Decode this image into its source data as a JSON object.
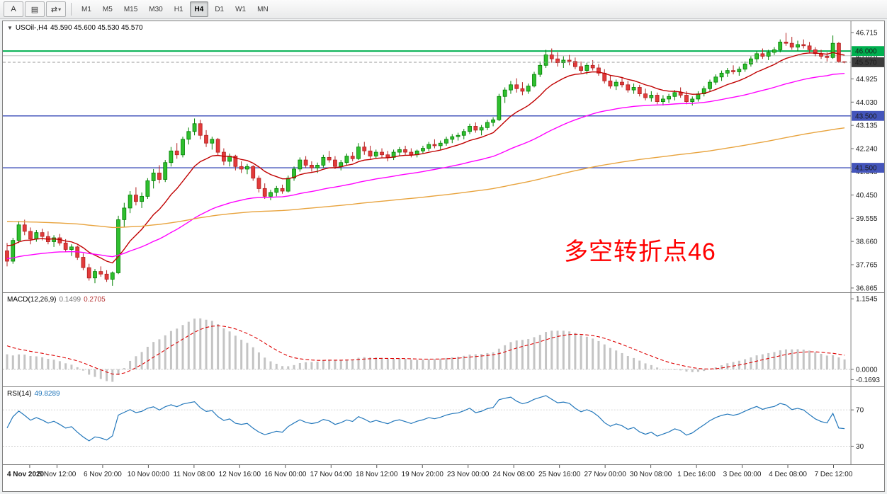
{
  "toolbar": {
    "tools": [
      {
        "name": "arrow-tool",
        "glyph": "A"
      },
      {
        "name": "chart-tool",
        "glyph": "▤"
      },
      {
        "name": "cycle-tool",
        "glyph": "⇄",
        "dropdown_glyph": "▾"
      }
    ],
    "timeframes": [
      {
        "label": "M1"
      },
      {
        "label": "M5"
      },
      {
        "label": "M15"
      },
      {
        "label": "M30"
      },
      {
        "label": "H1"
      },
      {
        "label": "H4",
        "active": true
      },
      {
        "label": "D1"
      },
      {
        "label": "W1"
      },
      {
        "label": "MN"
      }
    ]
  },
  "price_panel": {
    "collapse_glyph": "▼",
    "title": "USOil-,H4",
    "ohlc_text": "45.590 45.600 45.530 45.570",
    "annotation": "多空转折点46"
  },
  "macd_panel": {
    "name": "MACD(12,26,9)",
    "main_value": "0.1499",
    "signal_value": "0.2705"
  },
  "rsi_panel": {
    "name": "RSI(14)",
    "value": "49.8289"
  },
  "chart_data": {
    "type": "candlestick",
    "symbol": "USOil-",
    "timeframe": "H4",
    "current_bar": {
      "open": 45.59,
      "high": 45.6,
      "low": 45.53,
      "close": 45.57
    },
    "colors": {
      "bull": "#008000",
      "bull_fill": "#2FBF2F",
      "bear": "#B22020",
      "bear_fill": "#E23B3B",
      "background": "#FFFFFF"
    },
    "price_axis": {
      "min": 36.7,
      "max": 47.15,
      "ticks": [
        "46.715",
        "45.820",
        "44.925",
        "44.030",
        "43.135",
        "42.240",
        "41.345",
        "40.450",
        "39.555",
        "38.660",
        "37.765",
        "36.865"
      ]
    },
    "levels": [
      {
        "price": 46.0,
        "label": "46.000",
        "color": "#00B050",
        "width": 2
      },
      {
        "price": 45.82,
        "label": "",
        "color": "#C0C0C0",
        "width": 1
      },
      {
        "price": 43.5,
        "label": "43.500",
        "color": "#4455BB",
        "width": 1.4
      },
      {
        "price": 41.5,
        "label": "41.500",
        "color": "#4455BB",
        "width": 1.4
      }
    ],
    "bid": {
      "price": 45.57,
      "label": "45.570",
      "line_color": "#999999",
      "label_bg": "#3C3C3C"
    },
    "moving_averages": [
      {
        "name": "ma-fast",
        "color": "#C00000",
        "alpha": 0.15,
        "seed": 38.6
      },
      {
        "name": "ma-mid",
        "color": "#FF00FF",
        "alpha": 0.04,
        "seed": 38.0
      },
      {
        "name": "ma-slow",
        "color": "#E8A33D",
        "alpha": 0.012,
        "seed": 39.45
      }
    ],
    "candles": [
      [
        38.3,
        38.6,
        37.7,
        37.9
      ],
      [
        37.9,
        38.8,
        37.8,
        38.7
      ],
      [
        38.7,
        39.45,
        38.6,
        39.3
      ],
      [
        39.3,
        39.5,
        38.9,
        39.05
      ],
      [
        39.05,
        39.2,
        38.55,
        38.75
      ],
      [
        38.75,
        39.1,
        38.65,
        39.0
      ],
      [
        39.0,
        39.15,
        38.7,
        38.85
      ],
      [
        38.85,
        39.05,
        38.55,
        38.65
      ],
      [
        38.65,
        38.9,
        38.45,
        38.8
      ],
      [
        38.8,
        38.95,
        38.5,
        38.6
      ],
      [
        38.6,
        38.75,
        38.25,
        38.35
      ],
      [
        38.35,
        38.55,
        38.1,
        38.45
      ],
      [
        38.45,
        38.5,
        37.95,
        38.05
      ],
      [
        38.05,
        38.2,
        37.55,
        37.65
      ],
      [
        37.65,
        37.8,
        37.15,
        37.25
      ],
      [
        37.25,
        37.6,
        37.05,
        37.5
      ],
      [
        37.5,
        37.7,
        37.3,
        37.4
      ],
      [
        37.4,
        37.55,
        37.1,
        37.2
      ],
      [
        37.2,
        37.5,
        36.95,
        37.45
      ],
      [
        37.45,
        39.65,
        37.4,
        39.5
      ],
      [
        39.5,
        40.15,
        39.2,
        39.95
      ],
      [
        39.95,
        40.6,
        39.75,
        40.45
      ],
      [
        40.45,
        40.75,
        40.05,
        40.2
      ],
      [
        40.2,
        40.55,
        39.95,
        40.4
      ],
      [
        40.4,
        41.1,
        40.3,
        41.0
      ],
      [
        41.0,
        41.45,
        40.7,
        41.3
      ],
      [
        41.3,
        41.6,
        40.9,
        41.05
      ],
      [
        41.05,
        41.8,
        40.95,
        41.7
      ],
      [
        41.7,
        42.3,
        41.55,
        42.15
      ],
      [
        42.15,
        42.45,
        41.85,
        42.0
      ],
      [
        42.0,
        42.7,
        41.9,
        42.6
      ],
      [
        42.6,
        43.05,
        42.4,
        42.9
      ],
      [
        42.9,
        43.4,
        42.75,
        43.2
      ],
      [
        43.2,
        43.35,
        42.6,
        42.75
      ],
      [
        42.75,
        42.95,
        42.3,
        42.45
      ],
      [
        42.45,
        42.7,
        42.2,
        42.6
      ],
      [
        42.6,
        42.65,
        42.0,
        42.1
      ],
      [
        42.1,
        42.25,
        41.6,
        41.75
      ],
      [
        41.75,
        42.05,
        41.55,
        41.95
      ],
      [
        41.95,
        42.0,
        41.4,
        41.55
      ],
      [
        41.55,
        41.75,
        41.3,
        41.45
      ],
      [
        41.45,
        41.65,
        41.25,
        41.55
      ],
      [
        41.55,
        41.6,
        41.0,
        41.1
      ],
      [
        41.1,
        41.2,
        40.55,
        40.7
      ],
      [
        40.7,
        40.9,
        40.3,
        40.4
      ],
      [
        40.4,
        40.65,
        40.25,
        40.55
      ],
      [
        40.55,
        40.8,
        40.4,
        40.7
      ],
      [
        40.7,
        40.85,
        40.5,
        40.6
      ],
      [
        40.6,
        41.2,
        40.55,
        41.1
      ],
      [
        41.1,
        41.55,
        41.0,
        41.45
      ],
      [
        41.45,
        41.9,
        41.35,
        41.8
      ],
      [
        41.8,
        41.95,
        41.5,
        41.6
      ],
      [
        41.6,
        41.75,
        41.35,
        41.5
      ],
      [
        41.5,
        41.7,
        41.3,
        41.6
      ],
      [
        41.6,
        42.0,
        41.5,
        41.9
      ],
      [
        41.9,
        42.15,
        41.7,
        41.8
      ],
      [
        41.8,
        41.95,
        41.45,
        41.55
      ],
      [
        41.55,
        41.8,
        41.4,
        41.7
      ],
      [
        41.7,
        42.05,
        41.6,
        41.95
      ],
      [
        41.95,
        42.1,
        41.75,
        41.85
      ],
      [
        41.85,
        42.45,
        41.8,
        42.3
      ],
      [
        42.3,
        42.5,
        42.0,
        42.15
      ],
      [
        42.15,
        42.35,
        41.85,
        41.95
      ],
      [
        41.95,
        42.2,
        41.85,
        42.1
      ],
      [
        42.1,
        42.25,
        41.9,
        42.0
      ],
      [
        42.0,
        42.15,
        41.75,
        41.9
      ],
      [
        41.9,
        42.2,
        41.8,
        42.1
      ],
      [
        42.1,
        42.3,
        41.95,
        42.2
      ],
      [
        42.2,
        42.35,
        42.0,
        42.1
      ],
      [
        42.1,
        42.25,
        41.9,
        42.0
      ],
      [
        42.0,
        42.2,
        41.9,
        42.15
      ],
      [
        42.15,
        42.35,
        42.05,
        42.25
      ],
      [
        42.25,
        42.5,
        42.15,
        42.4
      ],
      [
        42.4,
        42.6,
        42.25,
        42.35
      ],
      [
        42.35,
        42.55,
        42.2,
        42.45
      ],
      [
        42.45,
        42.7,
        42.35,
        42.6
      ],
      [
        42.6,
        42.8,
        42.45,
        42.7
      ],
      [
        42.7,
        42.85,
        42.55,
        42.75
      ],
      [
        42.75,
        43.0,
        42.6,
        42.9
      ],
      [
        42.9,
        43.2,
        42.8,
        43.1
      ],
      [
        43.1,
        43.25,
        42.85,
        42.95
      ],
      [
        42.95,
        43.15,
        42.75,
        43.05
      ],
      [
        43.05,
        43.35,
        42.95,
        43.25
      ],
      [
        43.25,
        43.45,
        43.1,
        43.35
      ],
      [
        43.35,
        44.35,
        43.3,
        44.25
      ],
      [
        44.25,
        44.6,
        44.0,
        44.5
      ],
      [
        44.5,
        44.85,
        44.35,
        44.7
      ],
      [
        44.7,
        44.95,
        44.4,
        44.55
      ],
      [
        44.55,
        44.8,
        44.3,
        44.45
      ],
      [
        44.45,
        44.75,
        44.35,
        44.65
      ],
      [
        44.65,
        45.2,
        44.6,
        45.1
      ],
      [
        45.1,
        45.6,
        45.0,
        45.45
      ],
      [
        45.45,
        46.05,
        45.35,
        45.85
      ],
      [
        45.85,
        46.1,
        45.55,
        45.7
      ],
      [
        45.7,
        45.95,
        45.4,
        45.55
      ],
      [
        45.55,
        45.8,
        45.35,
        45.65
      ],
      [
        45.65,
        45.85,
        45.45,
        45.6
      ],
      [
        45.6,
        45.75,
        45.3,
        45.4
      ],
      [
        45.4,
        45.6,
        45.15,
        45.25
      ],
      [
        45.25,
        45.55,
        45.1,
        45.45
      ],
      [
        45.45,
        45.65,
        45.25,
        45.35
      ],
      [
        45.35,
        45.5,
        45.05,
        45.15
      ],
      [
        45.15,
        45.3,
        44.75,
        44.85
      ],
      [
        44.85,
        45.05,
        44.55,
        44.65
      ],
      [
        44.65,
        44.9,
        44.5,
        44.8
      ],
      [
        44.8,
        45.0,
        44.6,
        44.7
      ],
      [
        44.7,
        44.85,
        44.4,
        44.5
      ],
      [
        44.5,
        44.75,
        44.35,
        44.6
      ],
      [
        44.6,
        44.7,
        44.25,
        44.35
      ],
      [
        44.35,
        44.55,
        44.1,
        44.2
      ],
      [
        44.2,
        44.45,
        44.05,
        44.3
      ],
      [
        44.3,
        44.4,
        43.95,
        44.05
      ],
      [
        44.05,
        44.3,
        43.9,
        44.15
      ],
      [
        44.15,
        44.35,
        44.0,
        44.25
      ],
      [
        44.25,
        44.5,
        44.1,
        44.4
      ],
      [
        44.4,
        44.6,
        44.2,
        44.3
      ],
      [
        44.3,
        44.45,
        43.95,
        44.05
      ],
      [
        44.05,
        44.25,
        43.9,
        44.15
      ],
      [
        44.15,
        44.45,
        44.05,
        44.35
      ],
      [
        44.35,
        44.65,
        44.25,
        44.55
      ],
      [
        44.55,
        44.9,
        44.45,
        44.8
      ],
      [
        44.8,
        45.1,
        44.7,
        45.0
      ],
      [
        45.0,
        45.25,
        44.85,
        45.15
      ],
      [
        45.15,
        45.35,
        45.0,
        45.25
      ],
      [
        45.25,
        45.45,
        45.1,
        45.2
      ],
      [
        45.2,
        45.4,
        45.05,
        45.3
      ],
      [
        45.3,
        45.6,
        45.2,
        45.5
      ],
      [
        45.5,
        45.8,
        45.4,
        45.7
      ],
      [
        45.7,
        46.0,
        45.55,
        45.9
      ],
      [
        45.9,
        46.1,
        45.7,
        45.8
      ],
      [
        45.8,
        46.05,
        45.65,
        45.95
      ],
      [
        45.95,
        46.15,
        45.85,
        46.05
      ],
      [
        46.05,
        46.45,
        45.95,
        46.35
      ],
      [
        46.35,
        46.7,
        46.2,
        46.3
      ],
      [
        46.3,
        46.55,
        46.05,
        46.15
      ],
      [
        46.15,
        46.4,
        46.0,
        46.25
      ],
      [
        46.25,
        46.45,
        46.1,
        46.2
      ],
      [
        46.2,
        46.35,
        45.95,
        46.05
      ],
      [
        46.05,
        46.15,
        45.8,
        45.9
      ],
      [
        45.9,
        46.05,
        45.7,
        45.8
      ],
      [
        45.8,
        45.95,
        45.6,
        45.75
      ],
      [
        45.75,
        46.6,
        45.7,
        46.3
      ],
      [
        46.3,
        46.35,
        45.55,
        45.6
      ],
      [
        45.59,
        45.6,
        45.53,
        45.57
      ]
    ],
    "time_labels": [
      "4 Nov 2020",
      "5 Nov 12:00",
      "6 Nov 20:00",
      "10 Nov 00:00",
      "11 Nov 08:00",
      "12 Nov 16:00",
      "16 Nov 00:00",
      "17 Nov 04:00",
      "18 Nov 12:00",
      "19 Nov 20:00",
      "23 Nov 00:00",
      "24 Nov 08:00",
      "25 Nov 16:00",
      "27 Nov 00:00",
      "30 Nov 08:00",
      "1 Dec 16:00",
      "3 Dec 00:00",
      "4 Dec 08:00",
      "7 Dec 12:00"
    ],
    "macd": {
      "fast": 12,
      "slow": 26,
      "signal": 9,
      "main": 0.1499,
      "signal_value": 0.2705,
      "axis": [
        "1.1545",
        "0.0000",
        "-0.1693"
      ],
      "range": [
        -0.28,
        1.25
      ],
      "display_scale": 0.72,
      "seed_fast": 38.85,
      "seed_slow": 38.4,
      "seed_signal": 0.42,
      "hist_color": "#C4C4C4",
      "signal_color": "#DD0000"
    },
    "rsi": {
      "period": 14,
      "value": 49.8289,
      "levels": [
        70,
        30
      ],
      "axis": [
        "70",
        "30"
      ],
      "range": [
        10,
        95
      ],
      "color": "#2277BB",
      "level_color": "#C8C8C8"
    }
  }
}
